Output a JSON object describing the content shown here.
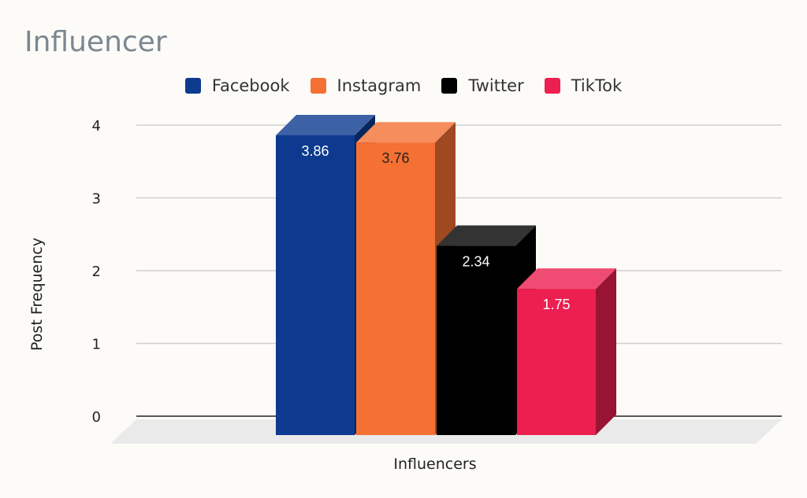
{
  "chart_data": {
    "type": "bar",
    "title": "Influencer",
    "xlabel": "Influencers",
    "ylabel": "Post Frequency",
    "ylim": [
      0,
      4
    ],
    "yticks": [
      "0",
      "1",
      "2",
      "3",
      "4"
    ],
    "grid": true,
    "legend_position": "top-center",
    "series": [
      {
        "name": "Facebook",
        "value": 3.86,
        "label": "3.86",
        "color": "#0d3a8e",
        "label_color": "#ffffff"
      },
      {
        "name": "Instagram",
        "value": 3.76,
        "label": "3.76",
        "color": "#f47033",
        "label_color": "#222222"
      },
      {
        "name": "Twitter",
        "value": 2.34,
        "label": "2.34",
        "color": "#000000",
        "label_color": "#ffffff"
      },
      {
        "name": "TikTok",
        "value": 1.75,
        "label": "1.75",
        "color": "#ec1f50",
        "label_color": "#ffffff"
      }
    ]
  }
}
